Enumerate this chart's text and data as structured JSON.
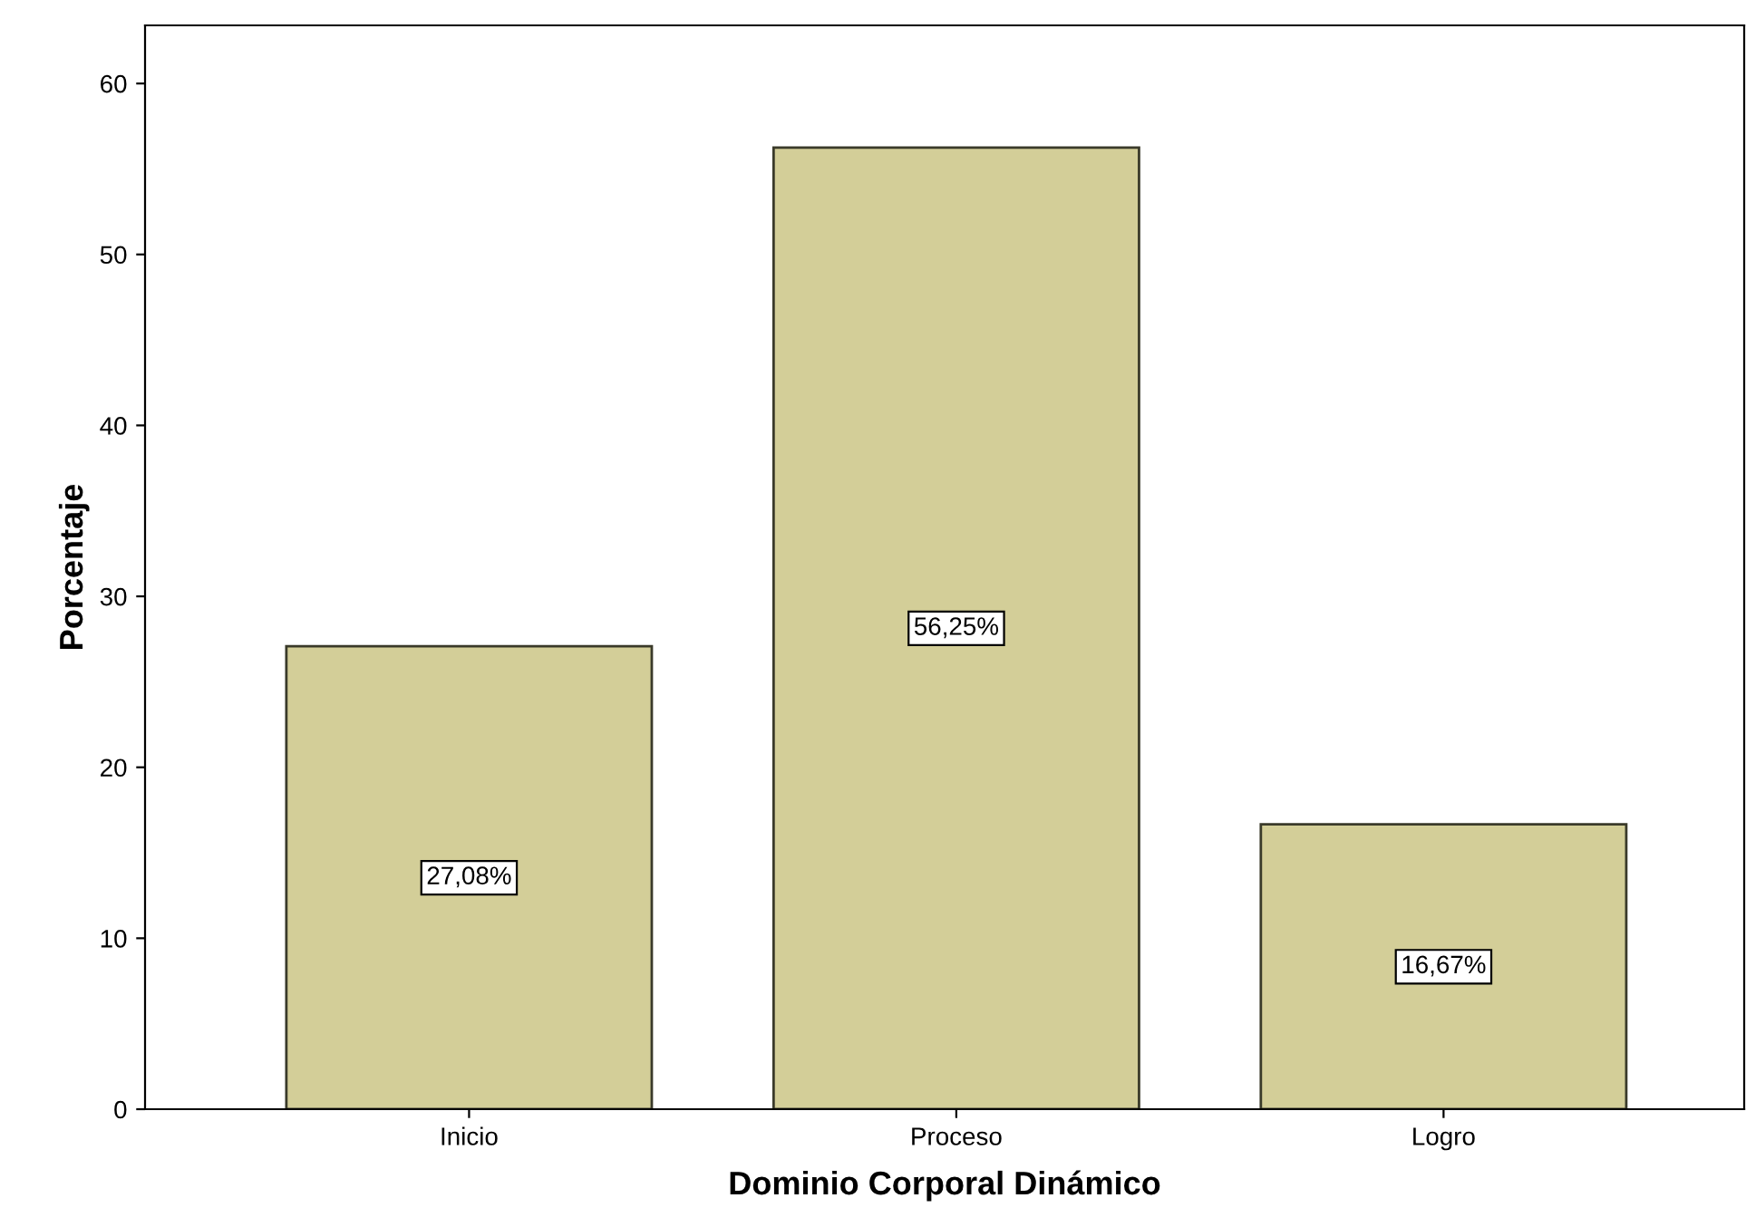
{
  "chart_data": {
    "type": "bar",
    "xlabel": "Dominio Corporal Dinámico",
    "ylabel": "Porcentaje",
    "categories": [
      "Inicio",
      "Proceso",
      "Logro"
    ],
    "values": [
      27.08,
      56.25,
      16.67
    ],
    "value_labels": [
      "27,08%",
      "56,25%",
      "16,67%"
    ],
    "color": "#d3ce98",
    "ylim": [
      0,
      63.4
    ],
    "yticks": [
      0,
      10,
      20,
      30,
      40,
      50,
      60
    ],
    "grid": false,
    "legend": false
  }
}
